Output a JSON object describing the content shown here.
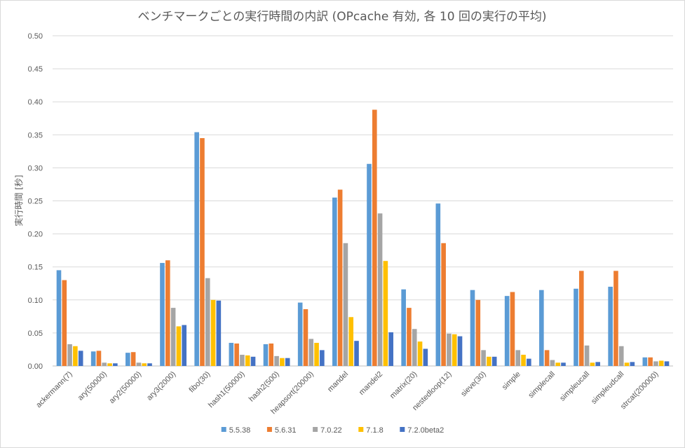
{
  "chart_data": {
    "type": "bar",
    "title": "ベンチマークごとの実行時間の内訳 (OPcache 有効, 各 10 回の実行の平均)",
    "xlabel": "",
    "ylabel": "実行時間 [秒]",
    "ylim": [
      0,
      0.5
    ],
    "yticks": [
      "0.00",
      "0.05",
      "0.10",
      "0.15",
      "0.20",
      "0.25",
      "0.30",
      "0.35",
      "0.40",
      "0.45",
      "0.50"
    ],
    "grid": true,
    "legend_position": "bottom",
    "categories": [
      "ackermann(7)",
      "ary(50000)",
      "ary2(50000)",
      "ary3(2000)",
      "fibo(30)",
      "hash1(50000)",
      "hash2(500)",
      "heapsort(20000)",
      "mandel",
      "mandel2",
      "matrix(20)",
      "nestedloop(12)",
      "sieve(30)",
      "simple",
      "simplecall",
      "simpleucall",
      "simpleudcall",
      "strcat(200000)"
    ],
    "series": [
      {
        "name": "5.5.38",
        "color": "#5b9bd5",
        "values": [
          0.145,
          0.022,
          0.02,
          0.156,
          0.354,
          0.035,
          0.033,
          0.096,
          0.255,
          0.306,
          0.116,
          0.246,
          0.115,
          0.106,
          0.115,
          0.117,
          0.12,
          0.013
        ]
      },
      {
        "name": "5.6.31",
        "color": "#ed7d31",
        "values": [
          0.13,
          0.023,
          0.021,
          0.16,
          0.345,
          0.034,
          0.034,
          0.086,
          0.267,
          0.388,
          0.088,
          0.186,
          0.1,
          0.112,
          0.024,
          0.144,
          0.144,
          0.013
        ]
      },
      {
        "name": "7.0.22",
        "color": "#a5a5a5",
        "values": [
          0.033,
          0.005,
          0.005,
          0.088,
          0.133,
          0.017,
          0.015,
          0.041,
          0.186,
          0.231,
          0.056,
          0.049,
          0.024,
          0.024,
          0.009,
          0.031,
          0.03,
          0.007
        ]
      },
      {
        "name": "7.1.8",
        "color": "#ffc000",
        "values": [
          0.03,
          0.004,
          0.004,
          0.06,
          0.1,
          0.016,
          0.012,
          0.035,
          0.074,
          0.159,
          0.037,
          0.048,
          0.014,
          0.017,
          0.005,
          0.005,
          0.005,
          0.008
        ]
      },
      {
        "name": "7.2.0beta2",
        "color": "#4472c4",
        "values": [
          0.023,
          0.004,
          0.004,
          0.062,
          0.099,
          0.014,
          0.012,
          0.024,
          0.038,
          0.051,
          0.026,
          0.045,
          0.014,
          0.011,
          0.005,
          0.006,
          0.006,
          0.007
        ]
      }
    ]
  }
}
